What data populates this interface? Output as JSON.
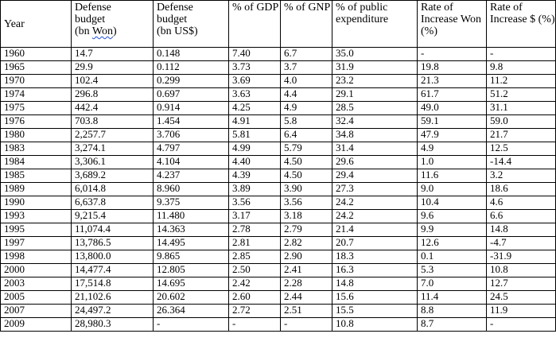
{
  "table": {
    "headers": [
      "Year",
      "Defense budget (bn Won)",
      "Defense budget (bn US$)",
      "% of GDP",
      "% of GNP",
      "% of public expenditure",
      "Rate of Increase Won (%)",
      "Rate of Increase $ (%)"
    ],
    "header_parts": {
      "defense_won": [
        "Defense",
        "budget",
        "(bn ",
        "Won",
        ")"
      ],
      "defense_usd": [
        "Defense",
        "budget",
        "(bn US$)"
      ]
    },
    "rows": [
      [
        "1960",
        "14.7",
        "0.148",
        "7.40",
        "6.7",
        "35.0",
        "-",
        "-"
      ],
      [
        "1965",
        "29.9",
        "0.112",
        "3.73",
        "3.7",
        "31.9",
        "19.8",
        "9.8"
      ],
      [
        "1970",
        "102.4",
        "0.299",
        "3.69",
        "4.0",
        "23.2",
        "21.3",
        "11.2"
      ],
      [
        "1974",
        "296.8",
        "0.697",
        "3.63",
        "4.4",
        "29.1",
        "61.7",
        "51.2"
      ],
      [
        "1975",
        "442.4",
        "0.914",
        "4.25",
        "4.9",
        "28.5",
        "49.0",
        "31.1"
      ],
      [
        "1976",
        "703.8",
        "1.454",
        "4.91",
        "5.8",
        "32.4",
        "59.1",
        "59.0"
      ],
      [
        "1980",
        "2,257.7",
        "3.706",
        "5.81",
        "6.4",
        "34.8",
        "47.9",
        "21.7"
      ],
      [
        "1983",
        "3,274.1",
        "4.797",
        "4.99",
        "5.79",
        "31.4",
        "4.9",
        "12.5"
      ],
      [
        "1984",
        "3,306.1",
        "4.104",
        "4.40",
        "4.50",
        "29.6",
        "1.0",
        "-14.4"
      ],
      [
        "1985",
        "3,689.2",
        "4.237",
        "4.39",
        "4.50",
        "29.4",
        "11.6",
        "3.2"
      ],
      [
        "1989",
        "6,014.8",
        "8.960",
        "3.89",
        "3.90",
        "27.3",
        "9.0",
        "18.6"
      ],
      [
        "1990",
        "6,637.8",
        "9.375",
        "3.56",
        "3.56",
        "24.2",
        "10.4",
        "4.6"
      ],
      [
        "1993",
        "9,215.4",
        "11.480",
        "3.17",
        "3.18",
        "24.2",
        "9.6",
        "6.6"
      ],
      [
        "1995",
        "11,074.4",
        "14.363",
        "2.78",
        "2.79",
        "21.4",
        "9.9",
        "14.8"
      ],
      [
        "1997",
        "13,786.5",
        "14.495",
        "2.81",
        "2.82",
        "20.7",
        "12.6",
        "-4.7"
      ],
      [
        "1998",
        "13,800.0",
        "9.865",
        "2.85",
        "2.90",
        "18.3",
        "0.1",
        "-31.9"
      ],
      [
        "2000",
        "14,477.4",
        "12.805",
        "2.50",
        "2.41",
        "16.3",
        "5.3",
        "10.8"
      ],
      [
        "2003",
        "17,514.8",
        "14.695",
        "2.42",
        "2.28",
        "14.8",
        "7.0",
        "12.7"
      ],
      [
        "2005",
        "21,102.6",
        "20.602",
        "2.60",
        "2.44",
        "15.6",
        "11.4",
        "24.5"
      ],
      [
        "2007",
        "24,497.2",
        "26.364",
        "2.72",
        "2.51",
        "15.5",
        "8.8",
        "11.9"
      ],
      [
        "2009",
        "28,980.3",
        "-",
        "-",
        "-",
        "10.8",
        "8.7",
        "-"
      ]
    ]
  },
  "colors": {
    "border": "#000000",
    "text": "#000000",
    "spellcheck_underline": "#1f4fd6"
  }
}
